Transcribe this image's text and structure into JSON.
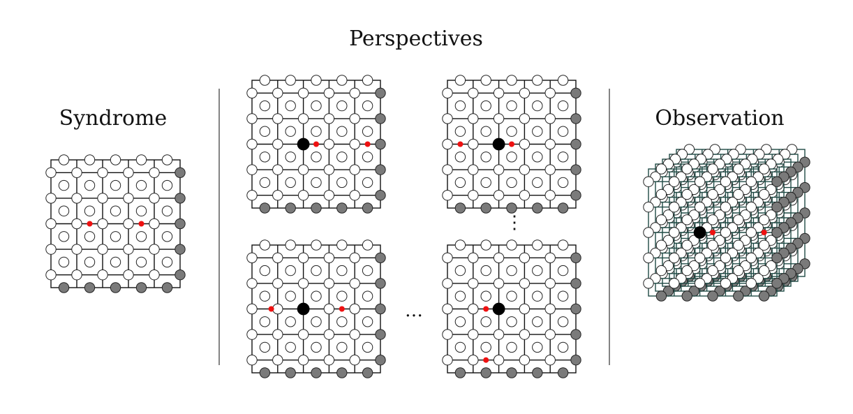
{
  "titles": {
    "syndrome": "Syndrome",
    "perspectives": "Perspectives",
    "observation": "Observation"
  },
  "ellipsis": {
    "horizontal": "…",
    "vertical": "⋮"
  },
  "colors": {
    "grid_line": "#111111",
    "grid_line_observation": "#1f4a45",
    "data_qubit": "#ffffff",
    "boundary_qubit": "#7a7a7a",
    "defect": "#ee1111",
    "focus_qubit": "#000000",
    "separator": "#333333"
  }
}
